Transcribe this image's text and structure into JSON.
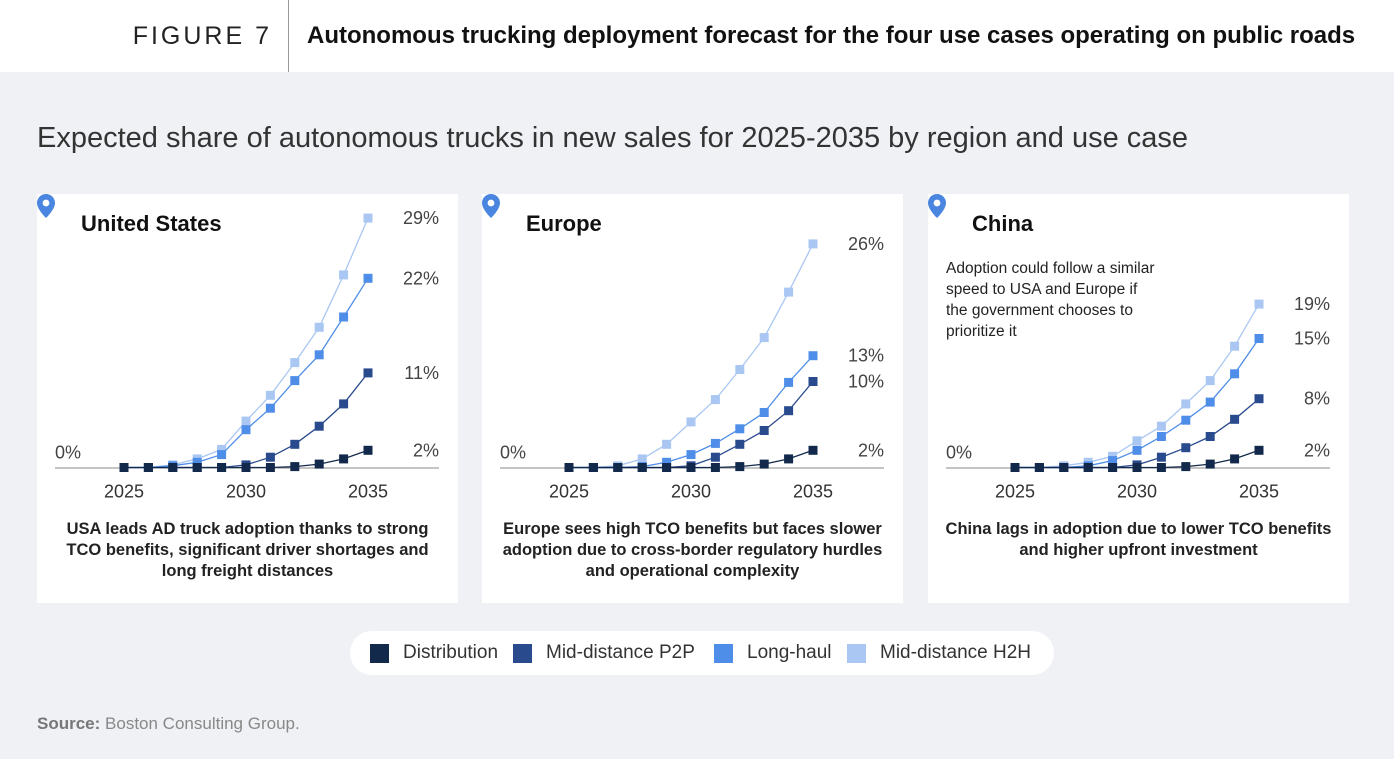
{
  "header": {
    "figure_label": "FIGURE 7",
    "title": "Autonomous trucking deployment forecast for the four use cases operating on public roads"
  },
  "subtitle": "Expected share of autonomous trucks in new sales for 2025-2035 by region and use case",
  "colors": {
    "Distribution": "#13294b",
    "Mid-distance P2P": "#2a4a8e",
    "Long-haul": "#4f8ee8",
    "Mid-distance H2H": "#a9c7f2",
    "pin": "#4a86e0"
  },
  "icons": {
    "location": "map-pin-icon"
  },
  "legend": [
    "Distribution",
    "Mid-distance P2P",
    "Long-haul",
    "Mid-distance H2H"
  ],
  "source": {
    "label": "Source:",
    "text": "Boston Consulting Group."
  },
  "panels": [
    {
      "region": "United States",
      "note": "",
      "caption": "USA leads AD truck adoption thanks to strong TCO benefits, significant driver shortages and long freight distances",
      "zero_label": "0%",
      "end_labels": [
        "2%",
        "11%",
        "22%",
        "29%"
      ]
    },
    {
      "region": "Europe",
      "note": "",
      "caption": "Europe sees high TCO benefits but faces slower adoption due to cross-border regulatory hurdles and operational complexity",
      "zero_label": "0%",
      "end_labels": [
        "2%",
        "10%",
        "13%",
        "26%"
      ]
    },
    {
      "region": "China",
      "note": "Adoption could follow a similar speed to USA and Europe if the government chooses to prioritize it",
      "caption": "China lags in adoption due to lower TCO benefits and higher upfront investment",
      "zero_label": "0%",
      "end_labels": [
        "2%",
        "8%",
        "15%",
        "19%"
      ]
    }
  ],
  "chart_data": [
    {
      "type": "line",
      "title": "United States",
      "x": [
        2025,
        2026,
        2027,
        2028,
        2029,
        2030,
        2031,
        2032,
        2033,
        2034,
        2035
      ],
      "xticks": [
        2025,
        2030,
        2035
      ],
      "ylim": [
        0,
        30
      ],
      "series": [
        {
          "name": "Distribution",
          "values": [
            0,
            0,
            0,
            0,
            0,
            0,
            0,
            0.1,
            0.4,
            1.0,
            2
          ]
        },
        {
          "name": "Mid-distance P2P",
          "values": [
            0,
            0,
            0,
            0,
            0,
            0.3,
            1.2,
            2.7,
            4.8,
            7.4,
            11
          ]
        },
        {
          "name": "Long-haul",
          "values": [
            0,
            0,
            0.2,
            0.6,
            1.5,
            4.4,
            6.9,
            10.1,
            13.1,
            17.5,
            22
          ]
        },
        {
          "name": "Mid-distance H2H",
          "values": [
            0,
            0,
            0.3,
            1.0,
            2.1,
            5.4,
            8.4,
            12.2,
            16.3,
            22.4,
            29
          ]
        }
      ]
    },
    {
      "type": "line",
      "title": "Europe",
      "x": [
        2025,
        2026,
        2027,
        2028,
        2029,
        2030,
        2031,
        2032,
        2033,
        2034,
        2035
      ],
      "xticks": [
        2025,
        2030,
        2035
      ],
      "ylim": [
        0,
        30
      ],
      "series": [
        {
          "name": "Distribution",
          "values": [
            0,
            0,
            0,
            0,
            0,
            0,
            0,
            0.1,
            0.4,
            1.0,
            2
          ]
        },
        {
          "name": "Mid-distance P2P",
          "values": [
            0,
            0,
            0,
            0,
            0,
            0.2,
            1.2,
            2.7,
            4.3,
            6.6,
            10
          ]
        },
        {
          "name": "Long-haul",
          "values": [
            0,
            0,
            0,
            0.1,
            0.6,
            1.5,
            2.8,
            4.5,
            6.4,
            9.9,
            13
          ]
        },
        {
          "name": "Mid-distance H2H",
          "values": [
            0,
            0,
            0.2,
            1.0,
            2.7,
            5.3,
            7.9,
            11.4,
            15.1,
            20.4,
            26
          ]
        }
      ]
    },
    {
      "type": "line",
      "title": "China",
      "x": [
        2025,
        2026,
        2027,
        2028,
        2029,
        2030,
        2031,
        2032,
        2033,
        2034,
        2035
      ],
      "xticks": [
        2025,
        2030,
        2035
      ],
      "ylim": [
        0,
        30
      ],
      "series": [
        {
          "name": "Distribution",
          "values": [
            0,
            0,
            0,
            0,
            0,
            0,
            0,
            0.1,
            0.4,
            1.0,
            2
          ]
        },
        {
          "name": "Mid-distance P2P",
          "values": [
            0,
            0,
            0,
            0,
            0,
            0.3,
            1.2,
            2.3,
            3.6,
            5.6,
            8
          ]
        },
        {
          "name": "Long-haul",
          "values": [
            0,
            0,
            0,
            0.2,
            0.8,
            2.0,
            3.6,
            5.5,
            7.6,
            10.9,
            15
          ]
        },
        {
          "name": "Mid-distance H2H",
          "values": [
            0,
            0,
            0.2,
            0.6,
            1.3,
            3.1,
            4.8,
            7.4,
            10.1,
            14.1,
            19
          ]
        }
      ]
    }
  ]
}
